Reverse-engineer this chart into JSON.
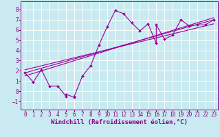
{
  "background_color": "#c8eaf0",
  "grid_color": "#ffffff",
  "line_color": "#990099",
  "marker_color": "#990099",
  "xlabel": "Windchill (Refroidissement éolien,°C)",
  "xlabel_fontsize": 6.5,
  "xlim": [
    -0.5,
    23.5
  ],
  "ylim": [
    -1.8,
    8.8
  ],
  "xticks": [
    0,
    1,
    2,
    3,
    4,
    5,
    6,
    7,
    8,
    9,
    10,
    11,
    12,
    13,
    14,
    15,
    16,
    17,
    18,
    19,
    20,
    21,
    22,
    23
  ],
  "yticks": [
    -1,
    0,
    1,
    2,
    3,
    4,
    5,
    6,
    7,
    8
  ],
  "scatter_x": [
    0,
    1,
    2,
    3,
    4,
    5,
    5,
    6,
    6,
    7,
    8,
    9,
    10,
    11,
    12,
    13,
    14,
    15,
    16,
    16,
    17,
    18,
    19,
    20,
    21,
    22,
    23
  ],
  "scatter_y": [
    1.8,
    0.9,
    2.1,
    0.5,
    0.5,
    -0.5,
    -0.3,
    -0.6,
    -0.5,
    1.5,
    2.5,
    4.5,
    6.3,
    7.9,
    7.6,
    6.7,
    5.9,
    6.6,
    4.7,
    6.5,
    5.1,
    5.5,
    7.0,
    6.4,
    6.5,
    6.5,
    7.0
  ],
  "line1_x": [
    0,
    23
  ],
  "line1_y": [
    1.8,
    7.0
  ],
  "line2_x": [
    0,
    23
  ],
  "line2_y": [
    1.5,
    7.2
  ],
  "line3_x": [
    0,
    23
  ],
  "line3_y": [
    2.1,
    6.6
  ]
}
